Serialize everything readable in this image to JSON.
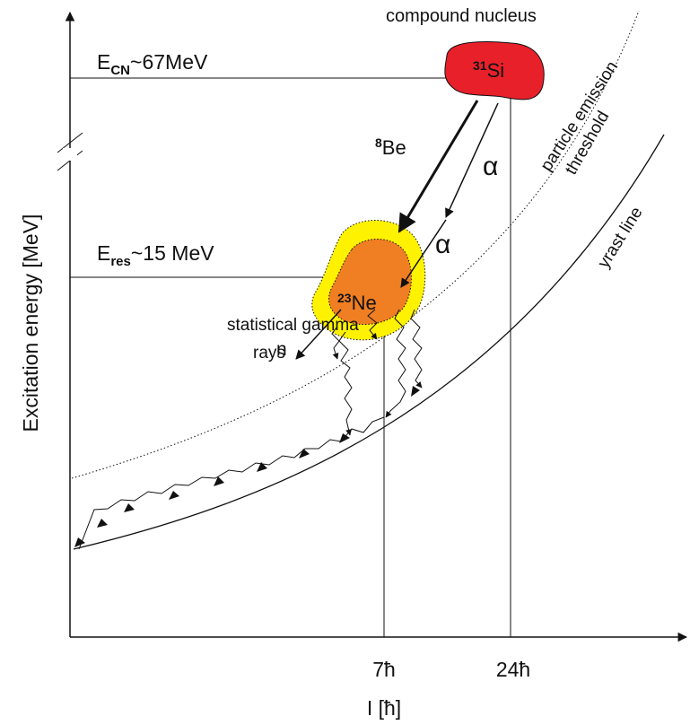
{
  "labels": {
    "compound_nucleus": "compound nucleus",
    "ecn": {
      "symbol": "E",
      "sub": "CN",
      "value": "~67MeV"
    },
    "si": {
      "mass": "31",
      "symbol": "Si"
    },
    "be": {
      "mass": "8",
      "symbol": "Be"
    },
    "alpha1": "α",
    "alpha2": "α",
    "threshold": [
      "particle emission",
      "threshold"
    ],
    "yrast": "yrast line",
    "eres": {
      "symbol": "E",
      "sub": "res",
      "value": "~15 MeV"
    },
    "ne": {
      "mass": "23",
      "symbol": "Ne"
    },
    "gamma": [
      "statistical gamma",
      "rays"
    ],
    "n": "n",
    "y_axis": "Excitation energy [MeV]",
    "x_ticks": [
      "7ħ",
      "24ħ"
    ],
    "x_axis": "I [ħ]"
  }
}
